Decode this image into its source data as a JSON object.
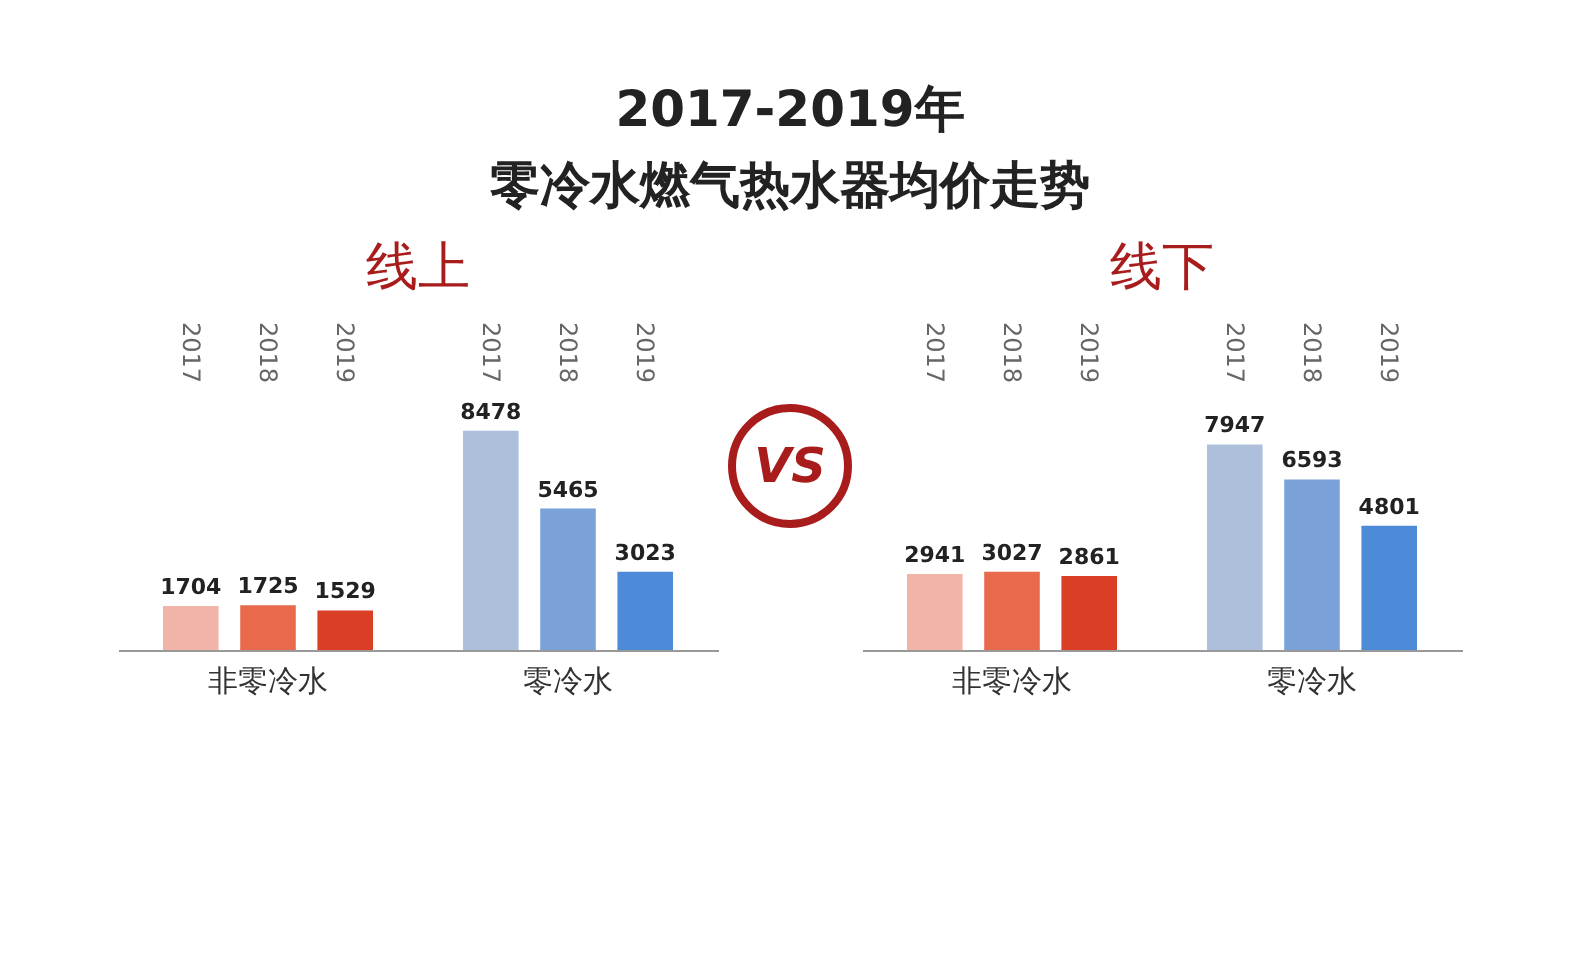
{
  "chart_data": [
    {
      "type": "other",
      "title": "2017-2019年",
      "subtitle": "零冷水燃气热水器均价走势",
      "annotations": [
        "VS"
      ]
    },
    {
      "type": "bar",
      "title": "线上",
      "categories": [
        "非零冷水",
        "零冷水"
      ],
      "series": [
        {
          "name": "2017",
          "colors": [
            "#f2b3a9",
            "#adbfdb"
          ],
          "values": [
            1704,
            8478
          ]
        },
        {
          "name": "2018",
          "colors": [
            "#e8694c",
            "#7ba2d8"
          ],
          "values": [
            1725,
            5465
          ]
        },
        {
          "name": "2019",
          "colors": [
            "#da3f26",
            "#4d8bd8"
          ],
          "values": [
            1529,
            3023
          ]
        }
      ],
      "data_labels": true,
      "tick_labels": "x",
      "grid": false
    },
    {
      "type": "bar",
      "title": "线下",
      "categories": [
        "非零冷水",
        "零冷水"
      ],
      "series": [
        {
          "name": "2017",
          "colors": [
            "#f2b3a9",
            "#adbfdb"
          ],
          "values": [
            2941,
            7947
          ]
        },
        {
          "name": "2018",
          "colors": [
            "#e8694c",
            "#7ba2d8"
          ],
          "values": [
            3027,
            6593
          ]
        },
        {
          "name": "2019",
          "colors": [
            "#da3f26",
            "#4d8bd8"
          ],
          "values": [
            2861,
            4801
          ]
        }
      ],
      "data_labels": true,
      "tick_labels": "x",
      "grid": false
    }
  ]
}
